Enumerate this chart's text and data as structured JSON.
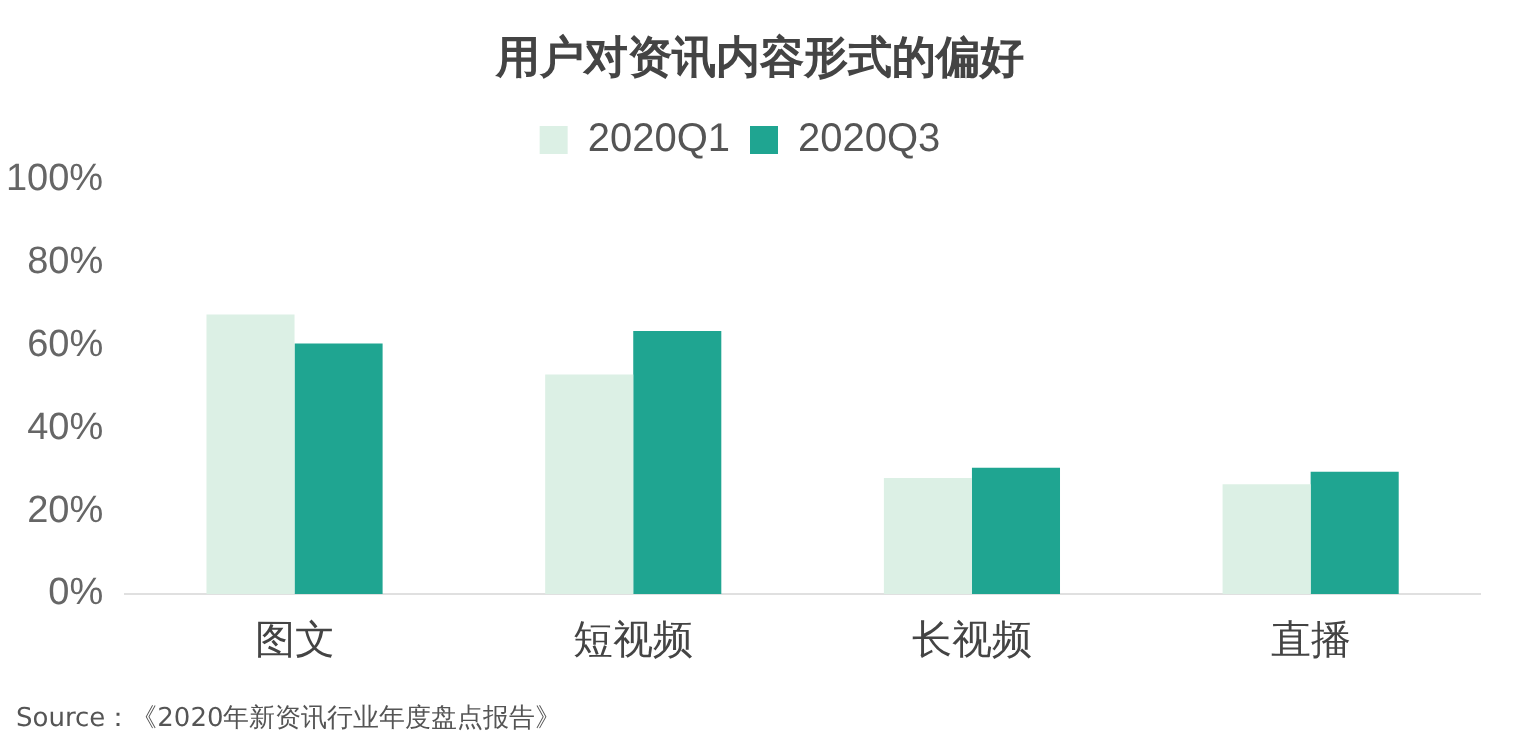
{
  "chart_data": {
    "type": "bar",
    "title": "用户对资讯内容形式的偏好",
    "categories": [
      "图文",
      "短视频",
      "长视频",
      "直播"
    ],
    "series": [
      {
        "name": "2020Q1",
        "color": "#dcf0e5",
        "values": [
          67.5,
          53,
          28,
          26.5
        ]
      },
      {
        "name": "2020Q3",
        "color": "#1fa591",
        "values": [
          60.5,
          63.5,
          30.5,
          29.5
        ]
      }
    ],
    "ylim": [
      0,
      100
    ],
    "yticks": [
      {
        "value": 0,
        "label": "0%"
      },
      {
        "value": 20,
        "label": "20%"
      },
      {
        "value": 40,
        "label": "40%"
      },
      {
        "value": 60,
        "label": "60%"
      },
      {
        "value": 80,
        "label": "80%"
      },
      {
        "value": 100,
        "label": "100%"
      }
    ],
    "grid": false,
    "legend": "top",
    "annotations": [
      "Source：《2020年新资讯行业年度盘点报告》"
    ]
  }
}
